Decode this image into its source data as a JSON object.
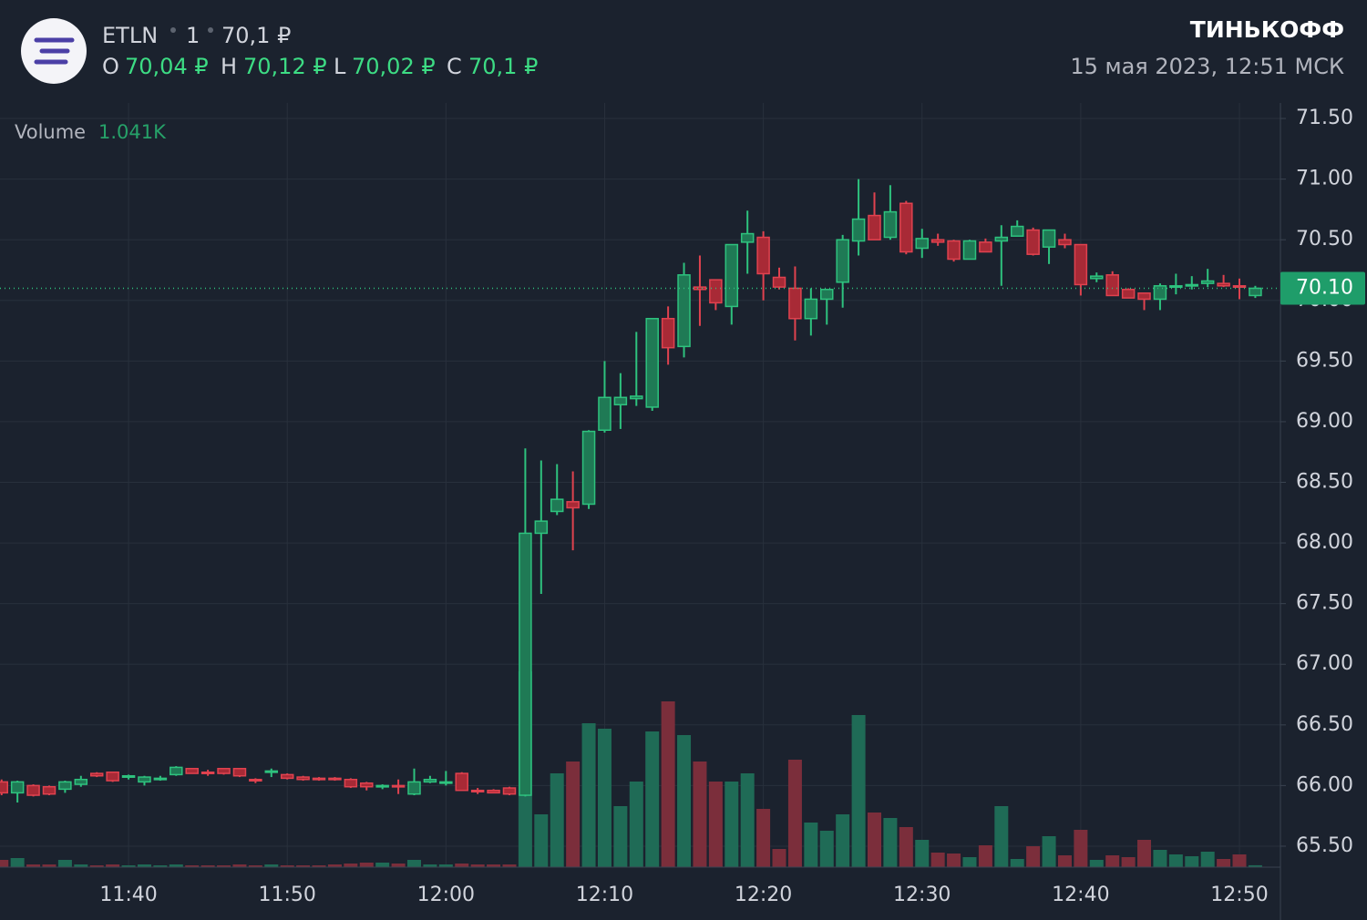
{
  "header": {
    "ticker": "ETLN",
    "interval": "1",
    "price": "70,1 ₽",
    "ohlc": [
      {
        "key": "O",
        "value": "70,04 ₽"
      },
      {
        "key": "H",
        "value": "70,12 ₽"
      },
      {
        "key": "L",
        "value": "70,02 ₽"
      },
      {
        "key": "C",
        "value": "70,1 ₽"
      }
    ],
    "brand": "ТИНЬКОФФ",
    "datetime": "15 мая 2023, 12:51 МСК"
  },
  "chart_data": {
    "type": "candlestick",
    "volume_label": "Volume",
    "volume_value_label": "1.041K",
    "x": [
      "11:32",
      "11:33",
      "11:34",
      "11:35",
      "11:36",
      "11:37",
      "11:38",
      "11:39",
      "11:40",
      "11:41",
      "11:42",
      "11:43",
      "11:44",
      "11:45",
      "11:46",
      "11:47",
      "11:48",
      "11:49",
      "11:50",
      "11:51",
      "11:52",
      "11:53",
      "11:54",
      "11:55",
      "11:56",
      "11:57",
      "11:58",
      "11:59",
      "12:00",
      "12:01",
      "12:02",
      "12:03",
      "12:04",
      "12:05",
      "12:06",
      "12:07",
      "12:08",
      "12:09",
      "12:10",
      "12:11",
      "12:12",
      "12:13",
      "12:14",
      "12:15",
      "12:16",
      "12:17",
      "12:18",
      "12:19",
      "12:20",
      "12:21",
      "12:22",
      "12:23",
      "12:24",
      "12:25",
      "12:26",
      "12:27",
      "12:28",
      "12:29",
      "12:30",
      "12:31",
      "12:32",
      "12:33",
      "12:34",
      "12:35",
      "12:36",
      "12:37",
      "12:38",
      "12:39",
      "12:40",
      "12:41",
      "12:42",
      "12:43",
      "12:44",
      "12:45",
      "12:46",
      "12:47",
      "12:48",
      "12:49",
      "12:50",
      "12:51"
    ],
    "open": [
      66.03,
      65.94,
      66.0,
      65.99,
      65.97,
      66.01,
      66.1,
      66.11,
      66.07,
      66.03,
      66.05,
      66.09,
      66.14,
      66.11,
      66.14,
      66.14,
      66.05,
      66.11,
      66.09,
      66.07,
      66.06,
      66.06,
      66.05,
      66.02,
      65.99,
      66.0,
      65.93,
      66.03,
      66.02,
      66.1,
      65.96,
      65.96,
      65.98,
      65.92,
      68.08,
      68.26,
      68.34,
      68.32,
      68.93,
      69.14,
      69.19,
      69.12,
      69.85,
      69.62,
      70.11,
      70.17,
      69.95,
      70.48,
      70.52,
      70.19,
      70.1,
      69.85,
      70.01,
      70.15,
      70.49,
      70.7,
      70.52,
      70.8,
      70.43,
      70.5,
      70.49,
      70.34,
      70.48,
      70.49,
      70.53,
      70.58,
      70.44,
      70.5,
      70.46,
      70.18,
      70.21,
      70.09,
      70.06,
      70.01,
      70.11,
      70.12,
      70.14,
      70.14,
      70.12,
      70.04
    ],
    "high": [
      66.05,
      66.04,
      66.01,
      66.0,
      66.04,
      66.08,
      66.11,
      66.11,
      66.09,
      66.08,
      66.08,
      66.16,
      66.14,
      66.13,
      66.14,
      66.14,
      66.06,
      66.14,
      66.1,
      66.08,
      66.07,
      66.07,
      66.06,
      66.03,
      66.01,
      66.05,
      66.14,
      66.08,
      66.12,
      66.11,
      65.98,
      65.97,
      65.99,
      68.78,
      68.68,
      68.65,
      68.59,
      68.93,
      69.5,
      69.4,
      69.74,
      69.85,
      69.95,
      70.31,
      70.37,
      70.17,
      70.46,
      70.74,
      70.57,
      70.27,
      70.28,
      70.1,
      70.09,
      70.54,
      71.0,
      70.89,
      70.95,
      70.82,
      70.59,
      70.55,
      70.5,
      70.5,
      70.51,
      70.62,
      70.66,
      70.6,
      70.58,
      70.55,
      70.46,
      70.23,
      70.24,
      70.1,
      70.06,
      70.14,
      70.22,
      70.2,
      70.26,
      70.21,
      70.18,
      70.12
    ],
    "low": [
      65.92,
      65.86,
      65.91,
      65.92,
      65.94,
      65.99,
      66.07,
      66.03,
      66.05,
      66.0,
      66.04,
      66.08,
      66.1,
      66.08,
      66.09,
      66.07,
      66.02,
      66.07,
      66.05,
      66.04,
      66.04,
      66.04,
      65.98,
      65.96,
      65.97,
      65.93,
      65.92,
      66.02,
      66.0,
      65.96,
      65.93,
      65.94,
      65.92,
      65.91,
      67.58,
      68.23,
      67.94,
      68.28,
      68.91,
      68.94,
      69.13,
      69.09,
      69.47,
      69.53,
      69.79,
      69.92,
      69.8,
      70.22,
      70.0,
      70.09,
      69.67,
      69.71,
      69.8,
      69.94,
      70.37,
      70.5,
      70.5,
      70.38,
      70.35,
      70.45,
      70.32,
      70.34,
      70.4,
      70.12,
      70.53,
      70.37,
      70.3,
      70.43,
      70.04,
      70.15,
      70.04,
      70.02,
      69.92,
      69.92,
      70.05,
      70.09,
      70.11,
      70.11,
      70.01,
      70.02
    ],
    "close": [
      65.94,
      66.03,
      65.92,
      65.93,
      66.03,
      66.05,
      66.08,
      66.04,
      66.08,
      66.07,
      66.06,
      66.15,
      66.1,
      66.1,
      66.1,
      66.08,
      66.04,
      66.12,
      66.06,
      66.05,
      66.05,
      66.05,
      65.99,
      65.99,
      66.0,
      65.99,
      66.03,
      66.05,
      66.03,
      65.96,
      65.95,
      65.94,
      65.93,
      68.08,
      68.18,
      68.36,
      68.29,
      68.92,
      69.2,
      69.2,
      69.21,
      69.85,
      69.61,
      70.21,
      70.09,
      69.98,
      70.46,
      70.55,
      70.22,
      70.11,
      69.85,
      70.01,
      70.09,
      70.5,
      70.67,
      70.5,
      70.73,
      70.4,
      70.51,
      70.48,
      70.34,
      70.49,
      70.4,
      70.52,
      70.61,
      70.38,
      70.58,
      70.46,
      70.13,
      70.2,
      70.04,
      70.02,
      70.01,
      70.12,
      70.12,
      70.13,
      70.16,
      70.12,
      70.11,
      70.1
    ],
    "volume": [
      4000,
      5000,
      1500,
      1500,
      4000,
      1500,
      1000,
      1500,
      1000,
      1500,
      1000,
      1500,
      1000,
      1000,
      1000,
      1500,
      1000,
      1500,
      1000,
      1000,
      1000,
      1500,
      2000,
      2500,
      2500,
      2000,
      4000,
      1500,
      1500,
      2000,
      1500,
      1500,
      1500,
      107500,
      29000,
      51500,
      58000,
      79000,
      76000,
      33500,
      47000,
      74500,
      91000,
      72500,
      58000,
      47000,
      47000,
      51500,
      32000,
      10000,
      59000,
      24500,
      20000,
      29000,
      83500,
      30000,
      27000,
      22000,
      15000,
      8000,
      7500,
      5500,
      12000,
      33500,
      4500,
      11500,
      17000,
      6500,
      20500,
      4000,
      6500,
      5500,
      15000,
      9500,
      7000,
      6000,
      8500,
      4500,
      7000,
      1041
    ],
    "up_color": "#2ec27e",
    "down_color": "#e0424f",
    "volume_up_color": "#1f6b56",
    "volume_down_color": "#7b2e3b",
    "xlim": [
      "11:31:54",
      "12:52:35"
    ],
    "xticks": [
      "11:40",
      "11:50",
      "12:00",
      "12:10",
      "12:20",
      "12:30",
      "12:40",
      "12:50"
    ],
    "ylim": [
      65.327,
      71.628
    ],
    "yticks": [
      {
        "value": 65.5,
        "label": "65.50"
      },
      {
        "value": 66,
        "label": "66.00"
      },
      {
        "value": 66.5,
        "label": "66.50"
      },
      {
        "value": 67,
        "label": "67.00"
      },
      {
        "value": 67.5,
        "label": "67.50"
      },
      {
        "value": 68,
        "label": "68.00"
      },
      {
        "value": 68.5,
        "label": "68.50"
      },
      {
        "value": 69,
        "label": "69.00"
      },
      {
        "value": 69.5,
        "label": "69.50"
      },
      {
        "value": 70,
        "label": "70.00"
      },
      {
        "value": 70.5,
        "label": "70.50"
      },
      {
        "value": 71,
        "label": "71.00"
      },
      {
        "value": 71.5,
        "label": "71.50"
      }
    ],
    "volume_lim": [
      0,
      419500
    ],
    "last_price": {
      "value": 70.1,
      "label": "70.10"
    },
    "grid": true
  }
}
